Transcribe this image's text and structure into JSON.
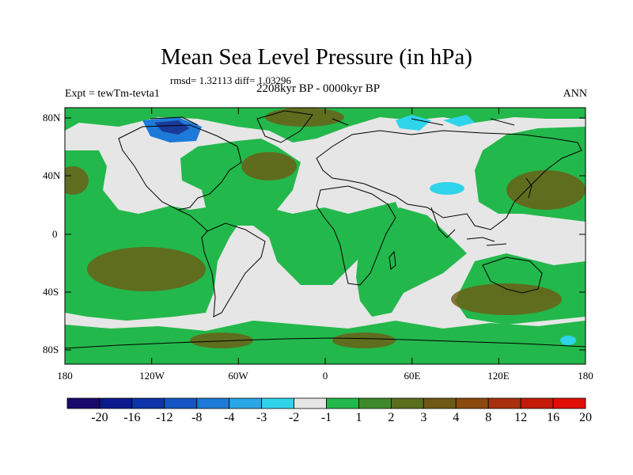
{
  "title": "Mean Sea Level Pressure (in hPa)",
  "stats": "rmsd= 1.32113 diff= 1.03296",
  "experiment": "Expt = tewTm-tevta1",
  "period": "2208kyr BP - 0000kyr BP",
  "season": "ANN",
  "axes": {
    "y_ticks": [
      "80N",
      "40N",
      "0",
      "40S",
      "80S"
    ],
    "x_ticks": [
      "180",
      "120W",
      "60W",
      "0",
      "60E",
      "120E",
      "180"
    ]
  },
  "legend": {
    "colors": [
      "#1a0a6e",
      "#0a1a8c",
      "#0d34a8",
      "#1556c4",
      "#1e7ad8",
      "#29a6e6",
      "#2fd4ea",
      "#e6e6e6",
      "#23b84b",
      "#3e8a2a",
      "#5a6e1e",
      "#6e5a14",
      "#8a4a0e",
      "#a8300c",
      "#c41a08",
      "#e00e06"
    ],
    "labels": [
      "-20",
      "-16",
      "-12",
      "-8",
      "-4",
      "-3",
      "-2",
      "-1",
      "1",
      "2",
      "3",
      "4",
      "8",
      "12",
      "16",
      "20"
    ]
  },
  "map_colors": {
    "near_zero": "#e6e6e6",
    "plus_1_2": "#23b84b",
    "plus_3_4": "#6e5a14",
    "minus_2_3": "#2fd4ea",
    "minus_4": "#1e7ad8",
    "minus_8": "#1a3a9a"
  }
}
